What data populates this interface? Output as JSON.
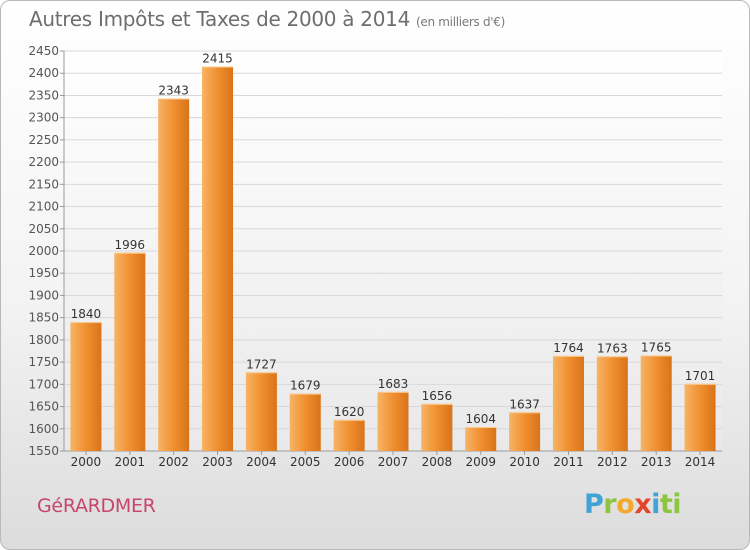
{
  "header": {
    "title": "Autres Impôts et Taxes de 2000 à 2014",
    "unit": "(en milliers d'€)"
  },
  "footer": {
    "commune": "GéRARDMER",
    "brand": [
      "P",
      "r",
      "o",
      "x",
      "i",
      "ti"
    ]
  },
  "chart_data": {
    "type": "bar",
    "title": "Autres Impôts et Taxes de 2000 à 2014",
    "subtitle": "(en milliers d'€)",
    "xlabel": "",
    "ylabel": "",
    "categories": [
      "2000",
      "2001",
      "2002",
      "2003",
      "2004",
      "2005",
      "2006",
      "2007",
      "2008",
      "2009",
      "2010",
      "2011",
      "2012",
      "2013",
      "2014"
    ],
    "values": [
      1840,
      1996,
      2343,
      2415,
      1727,
      1679,
      1620,
      1683,
      1656,
      1604,
      1637,
      1764,
      1763,
      1765,
      1701
    ],
    "ylim": [
      1550,
      2450
    ],
    "yticks": [
      1550,
      1600,
      1650,
      1700,
      1750,
      1800,
      1850,
      1900,
      1950,
      2000,
      2050,
      2100,
      2150,
      2200,
      2250,
      2300,
      2350,
      2400,
      2450
    ],
    "grid": true,
    "legend": "none",
    "bar_color": "#f0902f",
    "bar_color_light": "#f7b366",
    "bar_color_dark": "#d9731a"
  }
}
